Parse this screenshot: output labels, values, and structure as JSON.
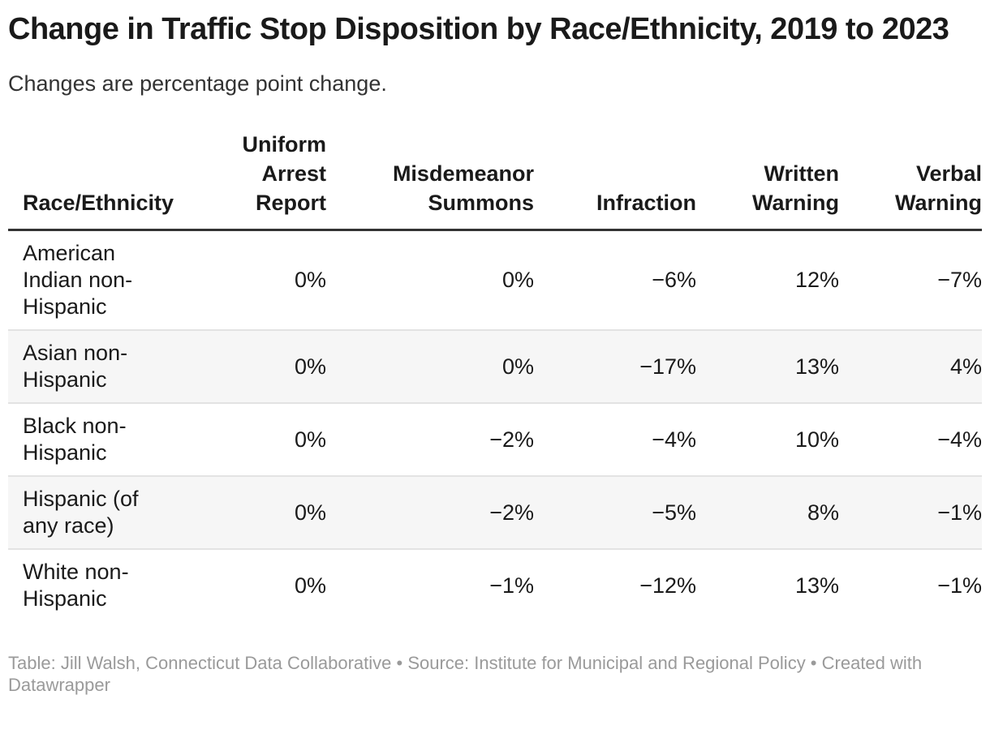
{
  "header": {
    "title": "Change in Traffic Stop Disposition by Race/Ethnicity, 2019 to 2023",
    "subtitle": "Changes are percentage point change."
  },
  "table": {
    "columns": [
      {
        "label": "Race/Ethnicity",
        "align": "left"
      },
      {
        "label": "Uniform Arrest Report",
        "align": "right"
      },
      {
        "label": "Misdemeanor Summons",
        "align": "right"
      },
      {
        "label": "Infraction",
        "align": "right"
      },
      {
        "label": "Written Warning",
        "align": "right"
      },
      {
        "label": "Verbal Warning",
        "align": "right"
      }
    ],
    "rows": [
      {
        "label": "American Indian non-Hispanic",
        "values": [
          "0%",
          "0%",
          "−6%",
          "12%",
          "−7%"
        ]
      },
      {
        "label": "Asian non-Hispanic",
        "values": [
          "0%",
          "0%",
          "−17%",
          "13%",
          "4%"
        ]
      },
      {
        "label": "Black non-Hispanic",
        "values": [
          "0%",
          "−2%",
          "−4%",
          "10%",
          "−4%"
        ]
      },
      {
        "label": "Hispanic (of any race)",
        "values": [
          "0%",
          "−2%",
          "−5%",
          "8%",
          "−1%"
        ]
      },
      {
        "label": "White non-Hispanic",
        "values": [
          "0%",
          "−1%",
          "−12%",
          "13%",
          "−1%"
        ]
      }
    ]
  },
  "footer": {
    "attribution": "Table: Jill Walsh, Connecticut Data Collaborative • Source: Institute for Municipal and Regional Policy • Created with Datawrapper"
  },
  "colors": {
    "text": "#1a1a1a",
    "subtitle_text": "#333333",
    "header_border": "#333333",
    "row_stripe": "#f6f6f6",
    "row_separator": "#e3e3e3",
    "footer_text": "#9a9a9a"
  },
  "chart_data": {
    "type": "table",
    "title": "Change in Traffic Stop Disposition by Race/Ethnicity, 2019 to 2023",
    "subtitle": "Changes are percentage point change.",
    "unit": "percentage point change",
    "categories": [
      "American Indian non-Hispanic",
      "Asian non-Hispanic",
      "Black non-Hispanic",
      "Hispanic (of any race)",
      "White non-Hispanic"
    ],
    "series": [
      {
        "name": "Uniform Arrest Report",
        "values": [
          0,
          0,
          0,
          0,
          0
        ]
      },
      {
        "name": "Misdemeanor Summons",
        "values": [
          0,
          0,
          -2,
          -2,
          -1
        ]
      },
      {
        "name": "Infraction",
        "values": [
          -6,
          -17,
          -4,
          -5,
          -12
        ]
      },
      {
        "name": "Written Warning",
        "values": [
          12,
          13,
          10,
          8,
          13
        ]
      },
      {
        "name": "Verbal Warning",
        "values": [
          -7,
          4,
          -4,
          -1,
          -1
        ]
      }
    ]
  }
}
